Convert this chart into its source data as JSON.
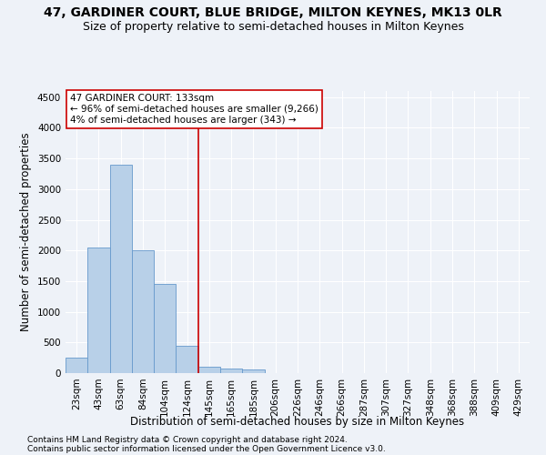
{
  "title": "47, GARDINER COURT, BLUE BRIDGE, MILTON KEYNES, MK13 0LR",
  "subtitle": "Size of property relative to semi-detached houses in Milton Keynes",
  "xlabel": "Distribution of semi-detached houses by size in Milton Keynes",
  "ylabel": "Number of semi-detached properties",
  "footnote1": "Contains HM Land Registry data © Crown copyright and database right 2024.",
  "footnote2": "Contains public sector information licensed under the Open Government Licence v3.0.",
  "categories": [
    "23sqm",
    "43sqm",
    "63sqm",
    "84sqm",
    "104sqm",
    "124sqm",
    "145sqm",
    "165sqm",
    "185sqm",
    "206sqm",
    "226sqm",
    "246sqm",
    "266sqm",
    "287sqm",
    "307sqm",
    "327sqm",
    "348sqm",
    "368sqm",
    "388sqm",
    "409sqm",
    "429sqm"
  ],
  "values": [
    250,
    2050,
    3400,
    2000,
    1450,
    450,
    100,
    75,
    60,
    0,
    0,
    0,
    0,
    0,
    0,
    0,
    0,
    0,
    0,
    0,
    0
  ],
  "bar_color": "#b8d0e8",
  "bar_edge_color": "#6699cc",
  "ylim": [
    0,
    4600
  ],
  "yticks": [
    0,
    500,
    1000,
    1500,
    2000,
    2500,
    3000,
    3500,
    4000,
    4500
  ],
  "property_bin_index": 5.5,
  "vline_color": "#cc0000",
  "annotation_text": "47 GARDINER COURT: 133sqm\n← 96% of semi-detached houses are smaller (9,266)\n4% of semi-detached houses are larger (343) →",
  "bg_color": "#eef2f8",
  "grid_color": "#ffffff",
  "title_fontsize": 10,
  "subtitle_fontsize": 9,
  "tick_fontsize": 7.5,
  "label_fontsize": 8.5,
  "footnote_fontsize": 6.5
}
